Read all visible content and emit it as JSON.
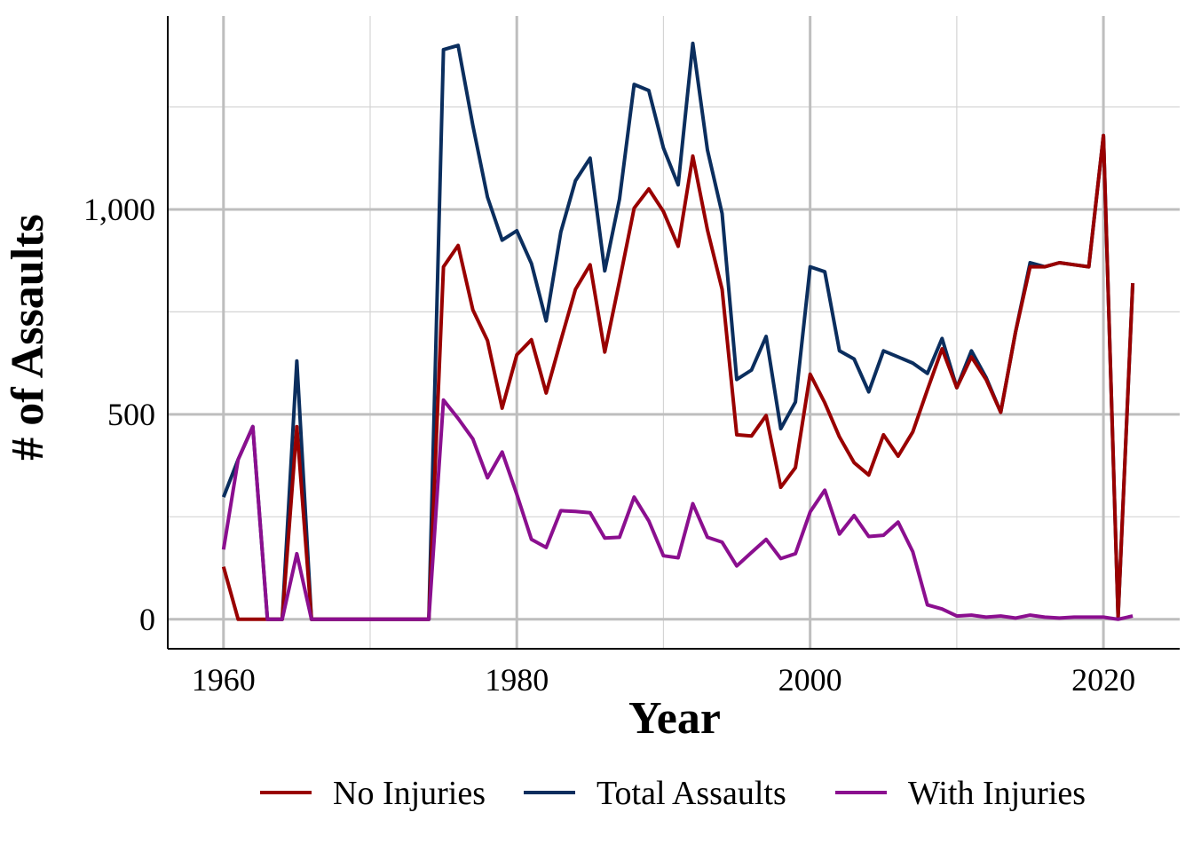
{
  "chart_data": {
    "type": "line",
    "title": "",
    "xlabel": "Year",
    "ylabel": "# of Assaults",
    "xlim": [
      1956.2,
      2025.2
    ],
    "ylim": [
      -72,
      1472
    ],
    "x_ticks": [
      1960,
      1980,
      2000,
      2020
    ],
    "x_tick_labels": [
      "1960",
      "1980",
      "2000",
      "2020"
    ],
    "y_ticks": [
      0,
      500,
      1000
    ],
    "y_tick_labels": [
      "0",
      "500",
      "1,000"
    ],
    "grid": true,
    "legend_position": "bottom",
    "x": [
      1960,
      1961,
      1962,
      1963,
      1964,
      1965,
      1966,
      1967,
      1968,
      1969,
      1970,
      1971,
      1972,
      1973,
      1974,
      1975,
      1976,
      1977,
      1978,
      1979,
      1980,
      1981,
      1982,
      1983,
      1984,
      1985,
      1986,
      1987,
      1988,
      1989,
      1990,
      1991,
      1992,
      1993,
      1994,
      1995,
      1996,
      1997,
      1998,
      1999,
      2000,
      2001,
      2002,
      2003,
      2004,
      2005,
      2006,
      2007,
      2008,
      2009,
      2010,
      2011,
      2012,
      2013,
      2014,
      2015,
      2016,
      2017,
      2018,
      2019,
      2020,
      2021,
      2022
    ],
    "series": [
      {
        "name": "No Injuries",
        "color": "#990000",
        "values": [
          128,
          0,
          0,
          0,
          0,
          470,
          0,
          0,
          0,
          0,
          0,
          0,
          0,
          0,
          0,
          860,
          912,
          755,
          680,
          515,
          645,
          682,
          552,
          680,
          805,
          865,
          652,
          825,
          1003,
          1050,
          995,
          910,
          1130,
          950,
          805,
          450,
          447,
          497,
          322,
          370,
          598,
          528,
          445,
          382,
          352,
          450,
          398,
          457,
          560,
          660,
          565,
          640,
          585,
          505,
          700,
          860,
          860,
          870,
          865,
          860,
          1180,
          5,
          820
        ]
      },
      {
        "name": "Total Assaults",
        "color": "#0B2E5E",
        "values": [
          298,
          390,
          470,
          0,
          0,
          630,
          0,
          0,
          0,
          0,
          0,
          0,
          0,
          0,
          0,
          1390,
          1400,
          1205,
          1030,
          925,
          948,
          868,
          728,
          945,
          1070,
          1125,
          850,
          1025,
          1305,
          1290,
          1150,
          1060,
          1405,
          1145,
          990,
          585,
          608,
          690,
          465,
          530,
          860,
          848,
          655,
          635,
          555,
          655,
          640,
          625,
          600,
          685,
          565,
          655,
          590,
          505,
          700,
          870,
          860,
          870,
          865,
          860,
          1180,
          5,
          820
        ]
      },
      {
        "name": "With Injuries",
        "color": "#8B0F8F",
        "values": [
          170,
          390,
          470,
          0,
          0,
          160,
          0,
          0,
          0,
          0,
          0,
          0,
          0,
          0,
          0,
          535,
          490,
          440,
          345,
          408,
          305,
          195,
          175,
          265,
          263,
          260,
          198,
          200,
          298,
          240,
          155,
          150,
          282,
          200,
          188,
          130,
          163,
          195,
          148,
          160,
          262,
          315,
          208,
          253,
          202,
          205,
          237,
          165,
          35,
          25,
          8,
          10,
          5,
          8,
          3,
          10,
          5,
          3,
          5,
          5,
          5,
          0,
          8
        ]
      }
    ]
  }
}
